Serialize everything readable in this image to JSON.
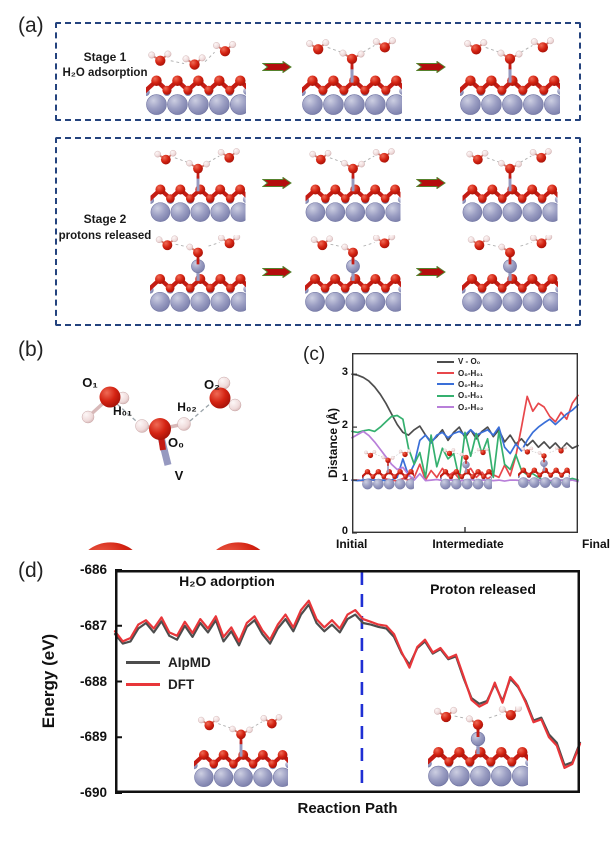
{
  "figure_labels": {
    "a": "(a)",
    "b": "(b)",
    "c": "(c)",
    "d": "(d)"
  },
  "panel_a": {
    "stage1_title": "Stage 1",
    "stage1_subtitle": "H₂O adsorption",
    "stage2_title": "Stage 2",
    "stage2_subtitle": "protons released"
  },
  "panel_b": {
    "o1": "O₁",
    "h01": "H₀₁",
    "h02": "H₀₂",
    "o2": "O₂",
    "o0": "O₀",
    "v": "V"
  },
  "icons": {
    "reaction_arrow": "block-arrow-right"
  },
  "atom_colors": {
    "oxygen": "#cf1d12",
    "hydrogen": "#f0dcdc",
    "vanadium": "#9699c0"
  },
  "chart_data": [
    {
      "id": "c",
      "type": "line",
      "ylabel": "Distance (Å)",
      "ylim": [
        0,
        3.4
      ],
      "yticks": [
        0,
        1,
        2,
        3
      ],
      "x_axis": {
        "labels": [
          "Initial",
          "Intermediate",
          "Final"
        ]
      },
      "legend_position": "top-center-inside",
      "grid": false,
      "series": [
        {
          "name": "V - O₀",
          "color": "#4d4d4d",
          "values": [
            3.0,
            2.98,
            2.94,
            2.87,
            2.76,
            2.62,
            2.45,
            2.25,
            2.05,
            1.9,
            1.85,
            1.95,
            2.02,
            1.85,
            1.72,
            1.82,
            1.95,
            1.75,
            1.9,
            2.0,
            1.8,
            1.95,
            1.78,
            1.92,
            2.0,
            1.82,
            1.95,
            1.72,
            1.85,
            1.68,
            1.78,
            1.65,
            1.75,
            1.62,
            1.72,
            1.6,
            1.7,
            1.58,
            1.7,
            1.6,
            1.65
          ]
        },
        {
          "name": "O₀-H₀₁",
          "color": "#e8474b",
          "values": [
            1.0,
            1.0,
            0.99,
            1.01,
            1.0,
            0.98,
            1.02,
            1.0,
            0.98,
            1.03,
            1.0,
            1.05,
            1.3,
            1.0,
            1.18,
            1.05,
            1.22,
            1.08,
            1.15,
            1.02,
            1.12,
            1.22,
            1.05,
            1.15,
            1.02,
            1.1,
            1.05,
            1.28,
            1.08,
            1.45,
            2.0,
            2.58,
            2.3,
            2.45,
            2.38,
            2.2,
            2.1,
            2.28,
            2.15,
            2.45,
            2.6
          ]
        },
        {
          "name": "O₀-H₀₂",
          "color": "#3a6fd8",
          "values": [
            1.0,
            0.99,
            1.0,
            1.01,
            1.0,
            1.0,
            0.99,
            1.0,
            1.05,
            1.4,
            1.08,
            1.3,
            1.75,
            1.85,
            1.7,
            1.85,
            1.9,
            1.8,
            1.88,
            1.92,
            1.85,
            1.95,
            1.85,
            1.9,
            1.95,
            1.85,
            2.0,
            1.62,
            1.5,
            1.68,
            1.55,
            1.75,
            1.9,
            2.0,
            2.08,
            2.15,
            2.05,
            2.15,
            2.25,
            2.32,
            2.42
          ]
        },
        {
          "name": "O₁-H₀₁",
          "color": "#35b06f",
          "values": [
            1.92,
            1.9,
            1.93,
            1.95,
            1.92,
            2.0,
            2.1,
            2.2,
            2.22,
            2.15,
            1.6,
            1.3,
            1.52,
            1.05,
            1.85,
            1.25,
            1.6,
            1.4,
            1.5,
            1.02,
            1.9,
            1.45,
            1.88,
            1.5,
            1.78,
            1.05,
            1.92,
            1.3,
            1.2,
            1.48,
            1.18,
            1.1,
            1.12,
            1.05,
            0.98,
            0.95,
            0.97,
            1.0,
            1.0,
            1.03,
            1.0
          ]
        },
        {
          "name": "O₂-H₀₂",
          "color": "#b87fd9",
          "values": [
            1.8,
            1.86,
            1.92,
            1.84,
            1.72,
            1.58,
            1.44,
            1.3,
            1.2,
            1.24,
            1.1,
            1.0,
            1.12,
            0.99,
            1.0,
            1.01,
            0.99,
            1.0,
            1.0,
            0.98,
            1.0,
            1.01,
            0.99,
            1.0,
            1.0,
            0.99,
            1.0,
            0.98,
            1.0,
            1.0,
            0.99,
            1.0,
            0.98,
            1.0,
            1.01,
            0.99,
            1.0,
            1.0,
            0.98,
            1.0,
            0.97
          ]
        }
      ]
    },
    {
      "id": "d",
      "type": "line",
      "xlabel": "Reaction Path",
      "ylabel": "Energy (eV)",
      "ylim": [
        -690,
        -686
      ],
      "yticks": [
        -686,
        -687,
        -688,
        -689,
        -690
      ],
      "annotations": [
        "H₂O adorption",
        "Proton released"
      ],
      "divider": {
        "x_fraction": 0.531,
        "color": "#1f2fd4",
        "style": "dashed"
      },
      "grid": false,
      "series": [
        {
          "name": "AIpMD",
          "color": "#4d4d4d",
          "values": [
            -687.15,
            -687.32,
            -687.28,
            -687.05,
            -686.95,
            -687.12,
            -686.92,
            -687.18,
            -687.25,
            -687.0,
            -687.2,
            -686.95,
            -687.12,
            -686.9,
            -687.28,
            -687.1,
            -687.35,
            -687.02,
            -686.9,
            -687.15,
            -687.32,
            -687.05,
            -686.88,
            -687.1,
            -686.8,
            -686.62,
            -686.95,
            -687.1,
            -686.98,
            -687.12,
            -686.88,
            -686.8,
            -686.95,
            -686.98,
            -687.02,
            -687.05,
            -687.2,
            -687.5,
            -687.7,
            -687.4,
            -687.28,
            -687.5,
            -687.42,
            -687.6,
            -687.55,
            -687.95,
            -688.3,
            -688.4,
            -688.35,
            -688.05,
            -688.35,
            -687.95,
            -688.1,
            -688.35,
            -688.7,
            -688.65,
            -688.95,
            -689.1,
            -689.5,
            -689.45,
            -689.1
          ]
        },
        {
          "name": "DFT",
          "color": "#e8363a",
          "values": [
            -687.1,
            -687.28,
            -687.22,
            -686.98,
            -686.9,
            -687.05,
            -686.85,
            -687.12,
            -687.18,
            -686.93,
            -687.13,
            -686.88,
            -687.05,
            -686.83,
            -687.2,
            -687.03,
            -687.28,
            -686.95,
            -686.83,
            -687.08,
            -687.25,
            -686.98,
            -686.8,
            -687.03,
            -686.72,
            -686.55,
            -686.88,
            -687.03,
            -686.9,
            -687.05,
            -686.8,
            -686.72,
            -686.88,
            -686.93,
            -686.98,
            -687.0,
            -687.15,
            -687.48,
            -687.75,
            -687.38,
            -687.25,
            -687.48,
            -687.4,
            -687.58,
            -687.52,
            -687.92,
            -688.33,
            -688.45,
            -688.38,
            -688.02,
            -688.38,
            -687.92,
            -688.08,
            -688.38,
            -688.73,
            -688.68,
            -689.0,
            -689.15,
            -689.55,
            -689.48,
            -689.12
          ]
        }
      ]
    }
  ]
}
